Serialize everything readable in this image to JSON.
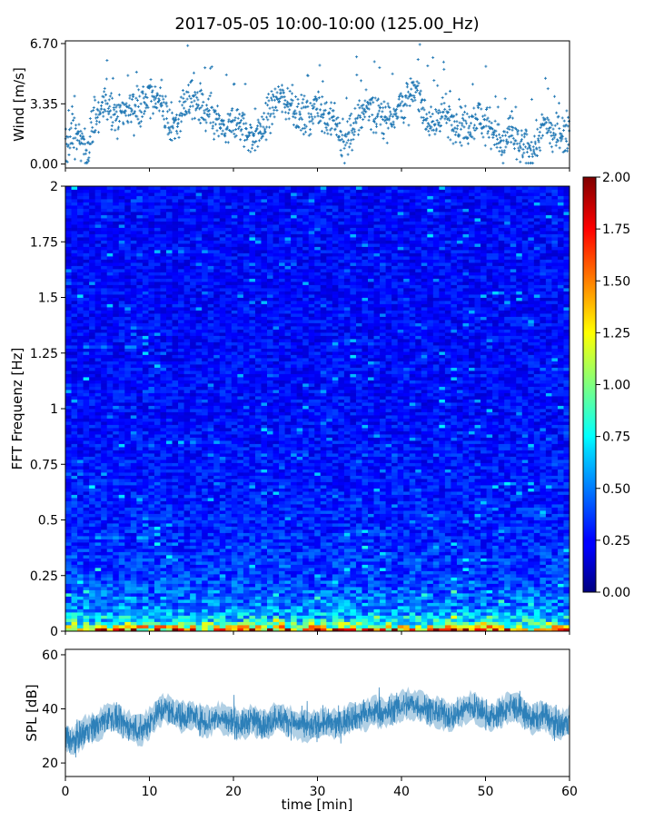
{
  "chart_data": [
    {
      "type": "scatter",
      "title": "2017-05-05 10:00-10:00 (125.00_Hz)",
      "xlabel": "",
      "ylabel": "Wind [m/s]",
      "xlim": [
        0,
        60
      ],
      "ylim": [
        -0.22,
        6.85
      ],
      "yticks": [
        0.0,
        3.35,
        6.7
      ],
      "ytick_labels": [
        "0.00",
        "3.35",
        "6.70"
      ],
      "color": "#1f77b4",
      "marker": "+",
      "series": [
        {
          "x": [
            0,
            1,
            2,
            2.5,
            3,
            4,
            5,
            6,
            7,
            8,
            9,
            10,
            11,
            12,
            13,
            14,
            15,
            16,
            17,
            18,
            19,
            20,
            21,
            22,
            23,
            24,
            25,
            26,
            27,
            28,
            29,
            30,
            31,
            32,
            33,
            34,
            35,
            36,
            37,
            38,
            39,
            40,
            41,
            42,
            43,
            44,
            45,
            46,
            47,
            48,
            49,
            50,
            51,
            52,
            53,
            54,
            55,
            56,
            57,
            58,
            59,
            60
          ],
          "y": [
            0.8,
            1.8,
            1.2,
            0.6,
            1.6,
            2.9,
            3.5,
            2.8,
            3.0,
            3.2,
            3.3,
            3.6,
            3.8,
            2.6,
            1.8,
            3.3,
            3.7,
            3.0,
            2.7,
            2.4,
            1.7,
            2.3,
            2.2,
            1.5,
            1.6,
            2.6,
            3.6,
            3.7,
            3.3,
            2.6,
            2.7,
            3.3,
            2.5,
            2.7,
            1.0,
            1.8,
            2.5,
            3.4,
            2.5,
            2.5,
            2.8,
            3.4,
            3.5,
            4.2,
            2.5,
            2.2,
            3.0,
            2.1,
            2.3,
            1.9,
            2.8,
            2.1,
            2.0,
            0.8,
            1.8,
            0.9,
            0.8,
            1.0,
            2.3,
            1.6,
            1.7,
            2.0
          ]
        }
      ]
    },
    {
      "type": "heatmap",
      "xlabel": "",
      "ylabel": "FFT Frequenz [Hz]",
      "xlim": [
        0,
        60
      ],
      "ylim": [
        0,
        2
      ],
      "yticks": [
        0,
        0.25,
        0.5,
        0.75,
        1,
        1.25,
        1.5,
        1.75,
        2
      ],
      "ytick_labels": [
        "0",
        "0.25",
        "0.5",
        "0.75",
        "1",
        "1.25",
        "1.5",
        "1.75",
        "2"
      ],
      "colormap": "jet",
      "clim": [
        0,
        2
      ],
      "colorbar_ticks": [
        0,
        0.25,
        0.5,
        0.75,
        1,
        1.25,
        1.5,
        1.75,
        2
      ],
      "colorbar_tick_labels": [
        "0.00",
        "0.25",
        "0.50",
        "0.75",
        "1.00",
        "1.25",
        "1.50",
        "1.75",
        "2.00"
      ],
      "freq_profile": {
        "freq_hz": [
          0,
          0.02,
          0.05,
          0.1,
          0.25,
          0.5,
          0.75,
          1.0,
          1.5,
          2.0
        ],
        "typical_value": [
          1.6,
          1.1,
          0.75,
          0.55,
          0.38,
          0.33,
          0.3,
          0.28,
          0.27,
          0.27
        ]
      }
    },
    {
      "type": "line",
      "xlabel": "time [min]",
      "ylabel": "SPL [dB]",
      "xlim": [
        0,
        60
      ],
      "ylim": [
        15,
        62
      ],
      "yticks": [
        20,
        40,
        60
      ],
      "ytick_labels": [
        "20",
        "40",
        "60"
      ],
      "xticks": [
        0,
        10,
        20,
        30,
        40,
        50,
        60
      ],
      "xtick_labels": [
        "0",
        "10",
        "20",
        "30",
        "40",
        "50",
        "60"
      ],
      "color": "#1f77b4",
      "series": [
        {
          "x": [
            0,
            1,
            2,
            3,
            4,
            5,
            6,
            7,
            8,
            9,
            10,
            11,
            12,
            13,
            14,
            15,
            16,
            17,
            18,
            19,
            20,
            21,
            22,
            23,
            24,
            25,
            26,
            27,
            28,
            29,
            30,
            31,
            32,
            33,
            34,
            35,
            36,
            37,
            38,
            39,
            40,
            41,
            42,
            43,
            44,
            45,
            46,
            47,
            48,
            49,
            50,
            51,
            52,
            53,
            54,
            55,
            56,
            57,
            58,
            59,
            60
          ],
          "y": [
            29,
            28,
            31,
            33,
            34,
            37,
            36,
            34,
            33,
            32,
            35,
            39,
            40,
            38,
            37,
            38,
            36,
            35,
            37,
            36,
            35,
            34,
            36,
            35,
            34,
            37,
            36,
            35,
            34,
            33,
            34,
            35,
            34,
            35,
            37,
            37,
            38,
            39,
            38,
            40,
            41,
            42,
            41,
            40,
            39,
            38,
            37,
            39,
            41,
            40,
            38,
            37,
            39,
            41,
            40,
            37,
            36,
            38,
            35,
            34,
            36
          ]
        }
      ]
    }
  ]
}
